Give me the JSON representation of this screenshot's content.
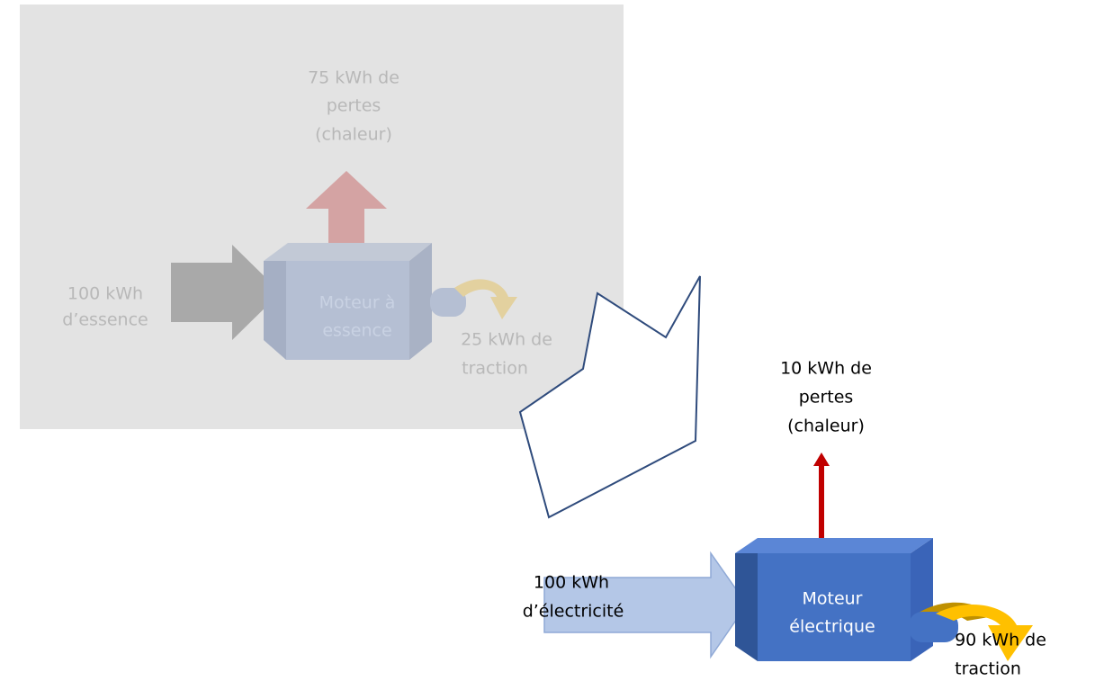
{
  "gasoline": {
    "input": [
      "100 kWh",
      "d’essence"
    ],
    "losses": [
      "75 kWh de",
      "pertes",
      "(chaleur)"
    ],
    "engine": [
      "Moteur à",
      "essence"
    ],
    "traction": [
      "25 kWh de",
      "traction"
    ]
  },
  "electric": {
    "input": [
      "100 kWh",
      "d’électricité"
    ],
    "losses": [
      "10 kWh de",
      "pertes",
      "(chaleur)"
    ],
    "engine": [
      "Moteur",
      "électrique"
    ],
    "traction": [
      "90 kWh de",
      "traction"
    ]
  }
}
